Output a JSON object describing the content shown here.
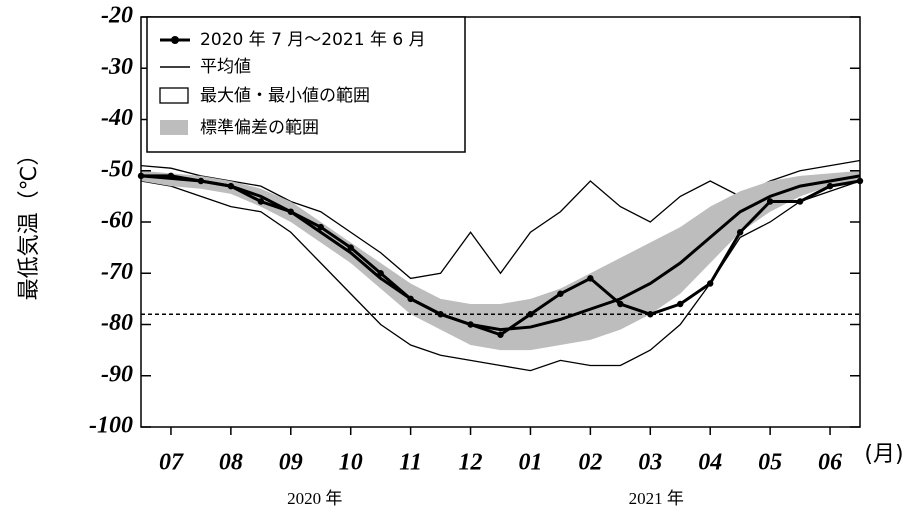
{
  "chart_data": {
    "type": "line",
    "y_label": "最低気温（℃）",
    "x_unit_label": "(月)",
    "year_labels": [
      {
        "value": 2.9,
        "label": "2020 年"
      },
      {
        "value": 8.6,
        "label": "2021 年"
      }
    ],
    "x": [
      0,
      0.5,
      1,
      1.5,
      2,
      2.5,
      3,
      3.5,
      4,
      4.5,
      5,
      5.5,
      6,
      6.5,
      7,
      7.5,
      8,
      8.5,
      9,
      9.5,
      10,
      10.5,
      11,
      11.5,
      12
    ],
    "xlim": [
      0,
      12
    ],
    "xticks": [
      {
        "value": 0.5,
        "label": "07"
      },
      {
        "value": 1.5,
        "label": "08"
      },
      {
        "value": 2.5,
        "label": "09"
      },
      {
        "value": 3.5,
        "label": "10"
      },
      {
        "value": 4.5,
        "label": "11"
      },
      {
        "value": 5.5,
        "label": "12"
      },
      {
        "value": 6.5,
        "label": "01"
      },
      {
        "value": 7.5,
        "label": "02"
      },
      {
        "value": 8.5,
        "label": "03"
      },
      {
        "value": 9.5,
        "label": "04"
      },
      {
        "value": 10.5,
        "label": "05"
      },
      {
        "value": 11.5,
        "label": "06"
      }
    ],
    "ylim": [
      -100,
      -20
    ],
    "yticks": [
      -100,
      -90,
      -80,
      -70,
      -60,
      -50,
      -40,
      -30,
      -20
    ],
    "reference_line": -78,
    "series": [
      {
        "name": "2020 年 7 月～2021 年 6 月",
        "color": "#000000",
        "markers": true,
        "values": [
          -51,
          -51,
          -52,
          -53,
          -56,
          -58,
          -61,
          -65,
          -70,
          -75,
          -78,
          -80,
          -82,
          -78,
          -74,
          -71,
          -76,
          -78,
          -76,
          -72,
          -62,
          -56,
          -56,
          -53,
          -52
        ]
      },
      {
        "name": "平均値",
        "color": "#000000",
        "markers": false,
        "values": [
          -51,
          -51.5,
          -52,
          -53,
          -55,
          -58,
          -62,
          -66,
          -71,
          -75,
          -78,
          -80,
          -81,
          -80.5,
          -79,
          -77,
          -75,
          -72,
          -68,
          -63,
          -58,
          -55,
          -53,
          -52,
          -51
        ]
      }
    ],
    "bands": [
      {
        "name": "最大値・最小値の範囲",
        "style": "outline",
        "color": "#000000",
        "upper": [
          -49,
          -49.5,
          -51,
          -52,
          -53,
          -56,
          -58,
          -62,
          -66,
          -71,
          -70,
          -62,
          -70,
          -62,
          -58,
          -52,
          -57,
          -60,
          -55,
          -52,
          -55,
          -52,
          -50,
          -49,
          -48
        ],
        "lower": [
          -52,
          -53,
          -55,
          -57,
          -58,
          -62,
          -68,
          -74,
          -80,
          -84,
          -86,
          -87,
          -88,
          -89,
          -87,
          -88,
          -88,
          -85,
          -80,
          -72,
          -63,
          -60,
          -56,
          -54,
          -52
        ]
      },
      {
        "name": "標準偏差の範囲",
        "style": "fill",
        "color": "#bdbdbd",
        "upper": [
          -50,
          -50.5,
          -51,
          -52,
          -53.5,
          -56,
          -60,
          -64,
          -68,
          -72,
          -75,
          -76,
          -76,
          -75,
          -73,
          -70,
          -67,
          -64,
          -61,
          -57,
          -54,
          -52,
          -51,
          -50.5,
          -50
        ],
        "lower": [
          -52,
          -53,
          -53.5,
          -54.5,
          -57,
          -60,
          -64,
          -68,
          -73,
          -78,
          -81,
          -84,
          -85,
          -85,
          -84,
          -83,
          -81,
          -78,
          -74,
          -68,
          -62,
          -58,
          -55,
          -53,
          -52
        ]
      }
    ]
  }
}
